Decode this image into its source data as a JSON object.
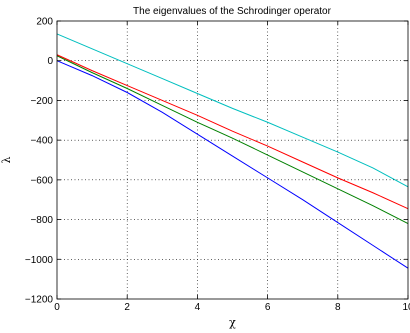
{
  "chart_data": {
    "type": "line",
    "title": "The eigenvalues of the Schrodinger operator",
    "xlabel": "χ",
    "ylabel": "λ",
    "xlim": [
      0,
      10
    ],
    "ylim": [
      -1200,
      200
    ],
    "grid": true,
    "x_ticks": [
      0,
      2,
      4,
      6,
      8,
      10
    ],
    "y_ticks": [
      -1200,
      -1000,
      -800,
      -600,
      -400,
      -200,
      0,
      200
    ],
    "x_tick_labels": [
      "0",
      "2",
      "4",
      "6",
      "8",
      "10"
    ],
    "y_tick_labels": [
      "−1200",
      "−1000",
      "−800",
      "−600",
      "−400",
      "−200",
      "0",
      "200"
    ],
    "series": [
      {
        "color": "#0000ff",
        "x": [
          0,
          1,
          2,
          3,
          4,
          5,
          6,
          7,
          8,
          9,
          10
        ],
        "y": [
          0,
          -75,
          -160,
          -260,
          -370,
          -480,
          -590,
          -700,
          -815,
          -930,
          -1045
        ]
      },
      {
        "color": "#008000",
        "x": [
          0,
          1,
          2,
          3,
          4,
          5,
          6,
          7,
          8,
          9,
          10
        ],
        "y": [
          25,
          -60,
          -140,
          -225,
          -310,
          -390,
          -475,
          -560,
          -645,
          -730,
          -820
        ]
      },
      {
        "color": "#ff0000",
        "x": [
          0,
          1,
          2,
          3,
          4,
          5,
          6,
          7,
          8,
          9,
          10
        ],
        "y": [
          30,
          -50,
          -125,
          -200,
          -275,
          -355,
          -430,
          -510,
          -590,
          -665,
          -745
        ]
      },
      {
        "color": "#00bfbf",
        "x": [
          0,
          1,
          2,
          3,
          4,
          5,
          6,
          7,
          8,
          9,
          10
        ],
        "y": [
          135,
          60,
          -15,
          -90,
          -165,
          -240,
          -310,
          -385,
          -460,
          -540,
          -635
        ]
      }
    ]
  }
}
